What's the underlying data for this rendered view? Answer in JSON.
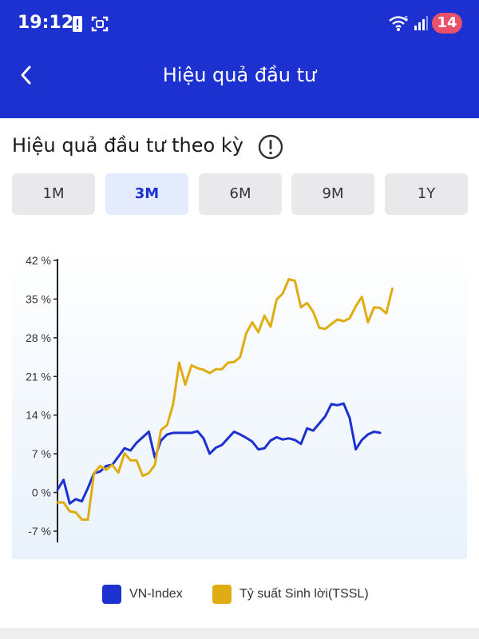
{
  "status_bar": {
    "time": "19:12",
    "battery": "14",
    "icons": [
      "alert-icon",
      "screenshot-icon",
      "wifi-icon",
      "signal-icon"
    ]
  },
  "header": {
    "title": "Hiệu quả đầu tư",
    "back_icon": "chevron-left-icon",
    "background_color": "#1c31cf"
  },
  "section": {
    "title": "Hiệu quả đầu tư theo kỳ",
    "info_icon": "info-icon"
  },
  "tabs": [
    {
      "label": "1M",
      "active": false
    },
    {
      "label": "3M",
      "active": true
    },
    {
      "label": "6M",
      "active": false
    },
    {
      "label": "9M",
      "active": false
    },
    {
      "label": "1Y",
      "active": false
    }
  ],
  "chart_data": {
    "type": "line",
    "ylim": [
      -7,
      42
    ],
    "y_ticks": [
      -7,
      0,
      7,
      14,
      21,
      28,
      35,
      42
    ],
    "y_tick_labels": [
      "-7 %",
      "0 %",
      "7 %",
      "14 %",
      "21 %",
      "28 %",
      "35 %",
      "42 %"
    ],
    "grid": false,
    "legend_position": "bottom",
    "x": [
      0,
      1,
      2,
      3,
      4,
      5,
      6,
      7,
      8,
      9,
      10,
      11,
      12,
      13,
      14,
      15,
      16,
      17,
      18,
      19,
      20,
      21,
      22,
      23,
      24,
      25,
      26,
      27,
      28,
      29,
      30,
      31,
      32,
      33,
      34,
      35,
      36,
      37,
      38,
      39,
      40,
      41,
      42,
      43,
      44,
      45,
      46,
      47,
      48,
      49,
      50,
      51,
      52,
      53,
      54,
      55,
      56,
      57,
      58,
      59,
      60,
      61,
      62,
      63,
      64
    ],
    "series": [
      {
        "name": "VN-Index",
        "color": "#1c31cf",
        "values": [
          0.5,
          2.3,
          -2,
          -1.2,
          -1.6,
          0.8,
          3.5,
          3.8,
          4.8,
          5,
          6.5,
          8,
          7.6,
          9,
          10,
          11,
          6.3,
          9.4,
          10.5,
          10.8,
          10.8,
          10.8,
          10.8,
          11.1,
          9.8,
          7,
          8.1,
          8.6,
          9.8,
          11,
          10.5,
          9.9,
          9.2,
          7.8,
          8,
          9.4,
          10,
          9.6,
          9.8,
          9.5,
          8.8,
          11.6,
          11.2,
          12.5,
          13.8,
          16,
          15.8,
          16.1,
          13.5,
          7.8,
          9.5,
          10.5,
          11,
          10.8,
          null,
          null,
          null,
          null,
          null,
          null,
          null,
          null,
          null,
          null,
          null
        ]
      },
      {
        "name": "Tỷ suất Sinh lời(TSSL)",
        "color": "#e0ac14",
        "values": [
          -1.8,
          -1.8,
          -3.4,
          -3.6,
          -4.9,
          -4.9,
          3.5,
          4.8,
          4.1,
          5,
          3.6,
          7.1,
          5.8,
          5.8,
          3,
          3.5,
          5,
          11.3,
          12.2,
          16,
          23.5,
          19.5,
          23,
          22.5,
          22.2,
          21.6,
          22.3,
          22.3,
          23.5,
          23.6,
          24.5,
          28.8,
          30.8,
          29,
          32,
          30,
          34.9,
          36,
          38.6,
          38.3,
          33.5,
          34.3,
          32.7,
          29.8,
          29.6,
          30.5,
          31.3,
          31,
          31.5,
          33.7,
          35.4,
          30.8,
          33.5,
          33.4,
          32.4,
          36.9,
          null,
          null,
          null,
          null,
          null,
          null,
          null,
          null,
          null
        ]
      }
    ]
  },
  "legend": [
    {
      "label": "VN-Index",
      "color": "#1c31cf"
    },
    {
      "label": "Tỷ suất Sinh lời(TSSL)",
      "color": "#e0ac14"
    }
  ]
}
